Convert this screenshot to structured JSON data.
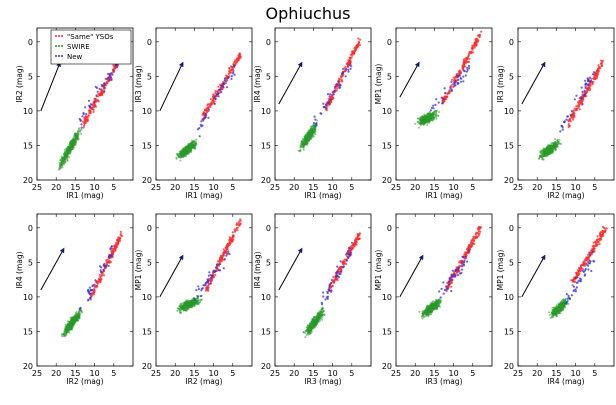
{
  "title": "Ophiuchus",
  "colors": {
    "same": "#ff2a2a",
    "swire": "#2a9a2a",
    "new": "#2f2fe6",
    "arrow": "#000000",
    "arrowhead": "#0a1a7a"
  },
  "legend": [
    "\"Same\" YSOs",
    "SWIRE",
    "New"
  ],
  "chart_data": [
    {
      "type": "scatter",
      "xlabel": "IR1 (mag)",
      "ylabel": "IR2 (mag)",
      "xlim": [
        25,
        0
      ],
      "ylim": [
        20,
        -2
      ],
      "xticks": [
        25,
        20,
        15,
        10,
        5
      ],
      "yticks": [
        0,
        5,
        10,
        15,
        20
      ],
      "legend": true,
      "series": [
        {
          "name": "\"Same\" YSOs",
          "x_range": [
            4,
            13
          ],
          "y_at_x": {
            "4": 3,
            "13": 12
          }
        },
        {
          "name": "SWIRE",
          "x_range": [
            12,
            20
          ],
          "y_at_x": {
            "12": 11,
            "20": 19
          }
        },
        {
          "name": "New",
          "x_range": [
            4,
            14
          ],
          "y_at_x": {
            "4": 3,
            "14": 12
          }
        }
      ],
      "reddening_vector": {
        "from": [
          24,
          10
        ],
        "to": [
          19,
          3
        ]
      }
    },
    {
      "type": "scatter",
      "xlabel": "IR1 (mag)",
      "ylabel": "IR3 (mag)",
      "xlim": [
        25,
        0
      ],
      "ylim": [
        20,
        -2
      ],
      "xticks": [
        25,
        20,
        15,
        10,
        5
      ],
      "yticks": [
        0,
        5,
        10,
        15,
        20
      ],
      "series": [
        {
          "name": "\"Same\" YSOs",
          "x_range": [
            3,
            13
          ],
          "y_at_x": {
            "3": 2,
            "13": 11
          }
        },
        {
          "name": "SWIRE",
          "x_range": [
            13,
            20
          ],
          "y_at_x": {
            "13": 14,
            "20": 17
          }
        },
        {
          "name": "New",
          "x_range": [
            5,
            14
          ],
          "y_at_x": {
            "5": 4,
            "14": 13
          }
        }
      ],
      "reddening_vector": {
        "from": [
          24,
          10
        ],
        "to": [
          18,
          3
        ]
      }
    },
    {
      "type": "scatter",
      "xlabel": "IR1 (mag)",
      "ylabel": "IR4 (mag)",
      "xlim": [
        25,
        0
      ],
      "ylim": [
        20,
        -2
      ],
      "xticks": [
        25,
        20,
        15,
        10,
        5
      ],
      "yticks": [
        0,
        5,
        10,
        15,
        20
      ],
      "series": [
        {
          "name": "\"Same\" YSOs",
          "x_range": [
            3,
            12
          ],
          "y_at_x": {
            "3": 0,
            "12": 10
          }
        },
        {
          "name": "SWIRE",
          "x_range": [
            13,
            19
          ],
          "y_at_x": {
            "13": 11,
            "19": 16
          }
        },
        {
          "name": "New",
          "x_range": [
            5,
            15
          ],
          "y_at_x": {
            "5": 3,
            "15": 12
          }
        }
      ],
      "reddening_vector": {
        "from": [
          24,
          9
        ],
        "to": [
          18,
          3
        ]
      }
    },
    {
      "type": "scatter",
      "xlabel": "IR1 (mag)",
      "ylabel": "MP1 (mag)",
      "xlim": [
        25,
        0
      ],
      "ylim": [
        20,
        -2
      ],
      "xticks": [
        25,
        20,
        15,
        10,
        5
      ],
      "yticks": [
        0,
        5,
        10,
        15,
        20
      ],
      "series": [
        {
          "name": "\"Same\" YSOs",
          "x_range": [
            3,
            13
          ],
          "y_at_x": {
            "3": -1,
            "13": 9
          }
        },
        {
          "name": "SWIRE",
          "x_range": [
            13,
            20
          ],
          "y_at_x": {
            "13": 10,
            "20": 12
          }
        },
        {
          "name": "New",
          "x_range": [
            6,
            16
          ],
          "y_at_x": {
            "6": 4,
            "16": 10
          }
        }
      ],
      "reddening_vector": {
        "from": [
          24,
          8
        ],
        "to": [
          19,
          3
        ]
      }
    },
    {
      "type": "scatter",
      "xlabel": "IR2 (mag)",
      "ylabel": "IR3 (mag)",
      "xlim": [
        25,
        0
      ],
      "ylim": [
        20,
        -2
      ],
      "xticks": [
        25,
        20,
        15,
        10,
        5
      ],
      "yticks": [
        0,
        5,
        10,
        15,
        20
      ],
      "series": [
        {
          "name": "\"Same\" YSOs",
          "x_range": [
            3,
            12
          ],
          "y_at_x": {
            "3": 3,
            "12": 12
          }
        },
        {
          "name": "SWIRE",
          "x_range": [
            13,
            20
          ],
          "y_at_x": {
            "13": 14,
            "20": 17
          }
        },
        {
          "name": "New",
          "x_range": [
            5,
            14
          ],
          "y_at_x": {
            "5": 4,
            "14": 13
          }
        }
      ],
      "reddening_vector": {
        "from": [
          24,
          9
        ],
        "to": [
          18,
          3
        ]
      }
    },
    {
      "type": "scatter",
      "xlabel": "IR2 (mag)",
      "ylabel": "IR4 (mag)",
      "xlim": [
        25,
        0
      ],
      "ylim": [
        20,
        -2
      ],
      "xticks": [
        25,
        20,
        15,
        10,
        5
      ],
      "yticks": [
        0,
        5,
        10,
        15,
        20
      ],
      "series": [
        {
          "name": "\"Same\" YSOs",
          "x_range": [
            3,
            11
          ],
          "y_at_x": {
            "3": 1,
            "11": 10
          }
        },
        {
          "name": "SWIRE",
          "x_range": [
            12,
            19
          ],
          "y_at_x": {
            "12": 11,
            "19": 16
          }
        },
        {
          "name": "New",
          "x_range": [
            5,
            14
          ],
          "y_at_x": {
            "5": 3,
            "14": 12
          }
        }
      ],
      "reddening_vector": {
        "from": [
          24,
          9
        ],
        "to": [
          18,
          3
        ]
      }
    },
    {
      "type": "scatter",
      "xlabel": "IR2 (mag)",
      "ylabel": "MP1 (mag)",
      "xlim": [
        25,
        0
      ],
      "ylim": [
        20,
        -2
      ],
      "xticks": [
        25,
        20,
        15,
        10,
        5
      ],
      "yticks": [
        0,
        5,
        10,
        15,
        20
      ],
      "series": [
        {
          "name": "\"Same\" YSOs",
          "x_range": [
            3,
            12
          ],
          "y_at_x": {
            "3": -1,
            "12": 9
          }
        },
        {
          "name": "SWIRE",
          "x_range": [
            12,
            20
          ],
          "y_at_x": {
            "12": 10,
            "20": 12
          }
        },
        {
          "name": "New",
          "x_range": [
            6,
            15
          ],
          "y_at_x": {
            "6": 4,
            "15": 10
          }
        }
      ],
      "reddening_vector": {
        "from": [
          24,
          10
        ],
        "to": [
          18,
          4
        ]
      }
    },
    {
      "type": "scatter",
      "xlabel": "IR3 (mag)",
      "ylabel": "IR4 (mag)",
      "xlim": [
        25,
        0
      ],
      "ylim": [
        20,
        -2
      ],
      "xticks": [
        25,
        20,
        15,
        10,
        5
      ],
      "yticks": [
        0,
        5,
        10,
        15,
        20
      ],
      "series": [
        {
          "name": "\"Same\" YSOs",
          "x_range": [
            3,
            11
          ],
          "y_at_x": {
            "3": 1,
            "11": 9
          }
        },
        {
          "name": "SWIRE",
          "x_range": [
            11,
            18
          ],
          "y_at_x": {
            "11": 11,
            "18": 16
          }
        },
        {
          "name": "New",
          "x_range": [
            5,
            13
          ],
          "y_at_x": {
            "5": 3,
            "13": 11
          }
        }
      ],
      "reddening_vector": {
        "from": [
          24,
          9
        ],
        "to": [
          18,
          3
        ]
      }
    },
    {
      "type": "scatter",
      "xlabel": "IR3 (mag)",
      "ylabel": "MP1 (mag)",
      "xlim": [
        25,
        0
      ],
      "ylim": [
        20,
        -2
      ],
      "xticks": [
        25,
        20,
        15,
        10,
        5
      ],
      "yticks": [
        0,
        5,
        10,
        15,
        20
      ],
      "series": [
        {
          "name": "\"Same\" YSOs",
          "x_range": [
            3,
            12
          ],
          "y_at_x": {
            "3": 0,
            "12": 9
          }
        },
        {
          "name": "SWIRE",
          "x_range": [
            12,
            19
          ],
          "y_at_x": {
            "12": 10,
            "19": 13
          }
        },
        {
          "name": "New",
          "x_range": [
            6,
            14
          ],
          "y_at_x": {
            "6": 4,
            "14": 10
          }
        }
      ],
      "reddening_vector": {
        "from": [
          24,
          10
        ],
        "to": [
          18,
          4
        ]
      }
    },
    {
      "type": "scatter",
      "xlabel": "IR4 (mag)",
      "ylabel": "MP1 (mag)",
      "xlim": [
        25,
        0
      ],
      "ylim": [
        20,
        -2
      ],
      "xticks": [
        25,
        20,
        15,
        10,
        5
      ],
      "yticks": [
        0,
        5,
        10,
        15,
        20
      ],
      "series": [
        {
          "name": "\"Same\" YSOs",
          "x_range": [
            2,
            11
          ],
          "y_at_x": {
            "2": 0,
            "11": 8
          }
        },
        {
          "name": "SWIRE",
          "x_range": [
            11,
            17
          ],
          "y_at_x": {
            "11": 10,
            "17": 13
          }
        },
        {
          "name": "New",
          "x_range": [
            5,
            13
          ],
          "y_at_x": {
            "5": 4,
            "13": 11
          }
        }
      ],
      "reddening_vector": {
        "from": [
          24,
          10
        ],
        "to": [
          18,
          4
        ]
      }
    }
  ]
}
